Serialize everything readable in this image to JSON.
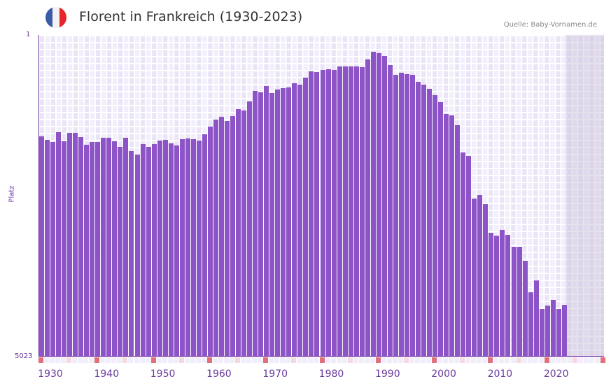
{
  "header": {
    "title": "Florent in Frankreich (1930-2023)",
    "source": "Quelle: Baby-Vornamen.de",
    "flag_colors": [
      "#3c5aa6",
      "#f2f2f2",
      "#e8252b"
    ]
  },
  "axes": {
    "y_top_label": "1",
    "y_bottom_label": "5023",
    "y_title": "Platz"
  },
  "colors": {
    "bar": "#8c54c7",
    "axis": "#6a2a9a",
    "grid_bg": "#f2eefb",
    "decade_tick": "#e0707c",
    "half_decade_tick": "#f5d9e2"
  },
  "chart_data": {
    "type": "bar",
    "title": "Florent in Frankreich (1930-2023)",
    "xlabel": "",
    "ylabel": "Platz",
    "ylim": [
      5023,
      1
    ],
    "y_inverted": true,
    "x_tick_labels": [
      "1930",
      "1940",
      "1950",
      "1960",
      "1970",
      "1980",
      "1990",
      "2000",
      "2010",
      "2020"
    ],
    "x_range": [
      1930,
      2030
    ],
    "grid": true,
    "legend": null,
    "categories": [
      1930,
      1931,
      1932,
      1933,
      1934,
      1935,
      1936,
      1937,
      1938,
      1939,
      1940,
      1941,
      1942,
      1943,
      1944,
      1945,
      1946,
      1947,
      1948,
      1949,
      1950,
      1951,
      1952,
      1953,
      1954,
      1955,
      1956,
      1957,
      1958,
      1959,
      1960,
      1961,
      1962,
      1963,
      1964,
      1965,
      1966,
      1967,
      1968,
      1969,
      1970,
      1971,
      1972,
      1973,
      1974,
      1975,
      1976,
      1977,
      1978,
      1979,
      1980,
      1981,
      1982,
      1983,
      1984,
      1985,
      1986,
      1987,
      1988,
      1989,
      1990,
      1991,
      1992,
      1993,
      1994,
      1995,
      1996,
      1997,
      1998,
      1999,
      2000,
      2001,
      2002,
      2003,
      2004,
      2005,
      2006,
      2007,
      2008,
      2009,
      2010,
      2011,
      2012,
      2013,
      2014,
      2015,
      2016,
      2017,
      2018,
      2019,
      2020,
      2021,
      2022,
      2023
    ],
    "values": [
      1584,
      1639,
      1672,
      1519,
      1661,
      1530,
      1530,
      1595,
      1716,
      1672,
      1672,
      1606,
      1606,
      1661,
      1748,
      1606,
      1814,
      1869,
      1705,
      1748,
      1705,
      1650,
      1639,
      1694,
      1727,
      1628,
      1617,
      1628,
      1650,
      1552,
      1432,
      1322,
      1279,
      1344,
      1268,
      1159,
      1180,
      1038,
      874,
      896,
      797,
      907,
      852,
      830,
      819,
      754,
      775,
      666,
      568,
      579,
      546,
      535,
      546,
      491,
      491,
      491,
      491,
      502,
      382,
      262,
      284,
      328,
      470,
      623,
      590,
      612,
      623,
      732,
      775,
      841,
      939,
      1049,
      1235,
      1257,
      1410,
      1836,
      1890,
      2556,
      2502,
      2644,
      3092,
      3136,
      3048,
      3125,
      3311,
      3311,
      3529,
      4020,
      3835,
      4282,
      4228,
      4140,
      4282,
      4217
    ]
  }
}
